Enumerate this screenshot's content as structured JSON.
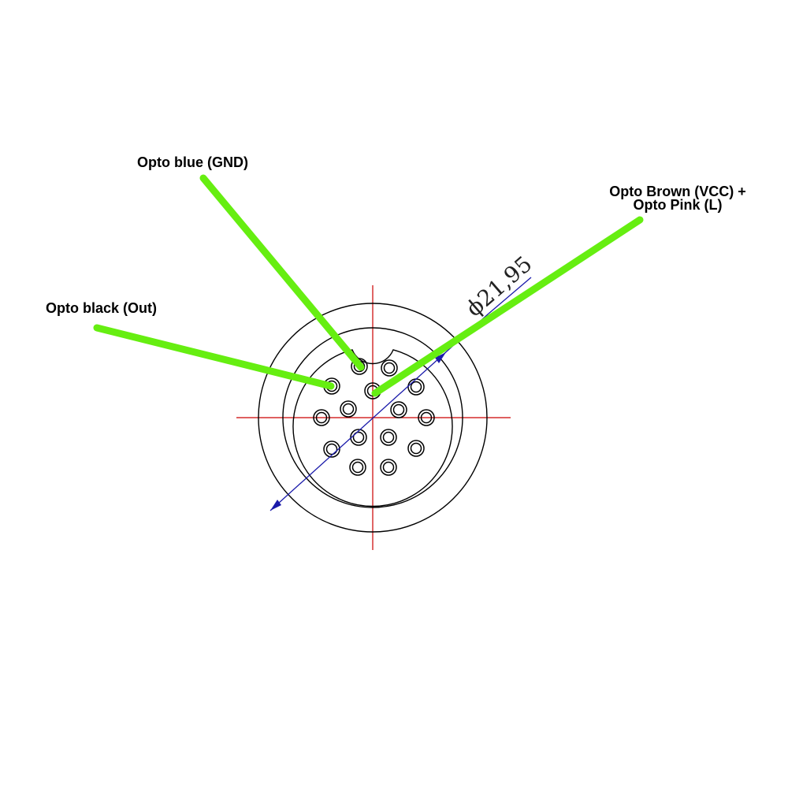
{
  "diagram": {
    "labels": {
      "opto_blue": "Opto blue (GND)",
      "opto_black": "Opto black (Out)",
      "opto_brown_line1": "Opto Brown (VCC) +",
      "opto_brown_line2": "Opto Pink (L)"
    },
    "dimension": "ϕ21,95",
    "colors": {
      "leader_line": "#66ee11",
      "centerline": "#cc0000",
      "dimension_line": "#1a1aaa",
      "outline": "#000000"
    },
    "pin_count": 16
  }
}
